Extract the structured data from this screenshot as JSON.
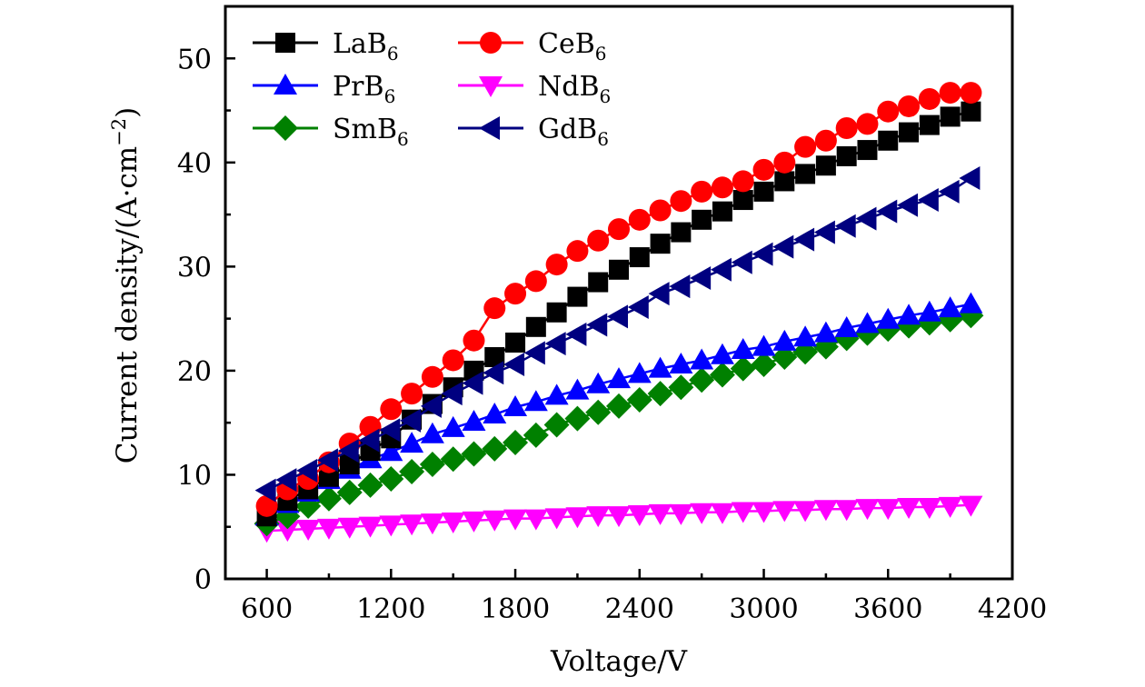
{
  "chart_data": {
    "type": "line",
    "title": "",
    "xlabel": "Voltage/V",
    "ylabel": "Current density/(A·cm⁻²)",
    "ylabel_parts": {
      "main": "Current density/(A·cm",
      "sup": "−2",
      "close": ")"
    },
    "xlim": [
      400,
      4200
    ],
    "ylim": [
      0,
      55
    ],
    "xticks": [
      600,
      1200,
      1800,
      2400,
      3000,
      3600,
      4200
    ],
    "xticks_minor": [
      900,
      1500,
      2100,
      2700,
      3300,
      3900
    ],
    "yticks": [
      0,
      10,
      20,
      30,
      40,
      50
    ],
    "yticks_minor": [
      5,
      15,
      25,
      35,
      45
    ],
    "grid": false,
    "legend": {
      "position": "top-left",
      "columns": 2
    },
    "x": [
      600,
      700,
      800,
      900,
      1000,
      1100,
      1200,
      1300,
      1400,
      1500,
      1600,
      1700,
      1800,
      1900,
      2000,
      2100,
      2200,
      2300,
      2400,
      2500,
      2600,
      2700,
      2800,
      2900,
      3000,
      3100,
      3200,
      3300,
      3400,
      3500,
      3600,
      3700,
      3800,
      3900,
      4000
    ],
    "series": [
      {
        "name": "LaB6",
        "base": "LaB",
        "sub": "6",
        "color": "#000000",
        "marker": "square",
        "values": [
          6.0,
          7.5,
          8.6,
          9.8,
          11.0,
          12.3,
          13.5,
          15.3,
          16.8,
          18.4,
          20.0,
          21.3,
          22.7,
          24.2,
          25.6,
          27.1,
          28.5,
          29.7,
          30.9,
          32.2,
          33.3,
          34.5,
          35.3,
          36.4,
          37.2,
          38.2,
          38.9,
          39.7,
          40.6,
          41.2,
          42.1,
          42.9,
          43.6,
          44.4,
          44.9
        ]
      },
      {
        "name": "CeB6",
        "base": "CeB",
        "sub": "6",
        "color": "#ff0000",
        "marker": "circle",
        "values": [
          7.0,
          8.6,
          9.6,
          11.2,
          13.0,
          14.6,
          16.3,
          17.8,
          19.4,
          21.0,
          22.9,
          26.0,
          27.4,
          28.6,
          30.2,
          31.5,
          32.5,
          33.6,
          34.5,
          35.4,
          36.3,
          37.2,
          37.6,
          38.2,
          39.3,
          40.0,
          41.5,
          42.1,
          43.3,
          43.7,
          44.9,
          45.4,
          46.1,
          46.7,
          46.7
        ]
      },
      {
        "name": "PrB6",
        "base": "PrB",
        "sub": "6",
        "color": "#0000ff",
        "marker": "triangle-up",
        "values": [
          6.0,
          7.2,
          8.3,
          9.5,
          10.5,
          11.5,
          12.2,
          13.0,
          13.9,
          14.5,
          15.1,
          15.8,
          16.5,
          17.0,
          17.6,
          18.1,
          18.7,
          19.2,
          19.7,
          20.2,
          20.6,
          21.0,
          21.5,
          22.0,
          22.3,
          22.8,
          23.2,
          23.6,
          24.1,
          24.5,
          24.9,
          25.3,
          25.6,
          26.0,
          26.4
        ]
      },
      {
        "name": "NdB6",
        "base": "NdB",
        "sub": "6",
        "color": "#ff00ff",
        "marker": "triangle-down",
        "values": [
          4.6,
          4.7,
          4.8,
          4.9,
          5.0,
          5.1,
          5.2,
          5.3,
          5.4,
          5.5,
          5.6,
          5.7,
          5.8,
          5.8,
          5.9,
          6.0,
          6.1,
          6.1,
          6.2,
          6.3,
          6.3,
          6.4,
          6.4,
          6.5,
          6.5,
          6.6,
          6.6,
          6.7,
          6.7,
          6.8,
          6.8,
          6.9,
          6.9,
          7.0,
          7.1
        ]
      },
      {
        "name": "SmB6",
        "base": "SmB",
        "sub": "6",
        "color": "#008000",
        "marker": "diamond",
        "values": [
          5.3,
          6.0,
          7.0,
          7.7,
          8.3,
          9.0,
          9.6,
          10.3,
          11.0,
          11.5,
          12.0,
          12.5,
          13.1,
          13.8,
          14.8,
          15.4,
          16.0,
          16.6,
          17.2,
          17.8,
          18.4,
          19.1,
          19.6,
          20.2,
          20.6,
          21.3,
          21.8,
          22.3,
          23.1,
          23.6,
          24.0,
          24.3,
          24.6,
          24.9,
          25.3
        ]
      },
      {
        "name": "GdB6",
        "base": "GdB",
        "sub": "6",
        "color": "#000080",
        "marker": "triangle-left",
        "values": [
          8.5,
          9.5,
          10.4,
          11.4,
          12.3,
          13.3,
          14.3,
          15.2,
          16.6,
          17.8,
          18.8,
          19.8,
          20.6,
          21.7,
          22.6,
          23.5,
          24.4,
          25.2,
          26.1,
          27.4,
          28.1,
          28.9,
          29.7,
          30.4,
          31.2,
          31.9,
          32.6,
          33.3,
          33.9,
          34.6,
          35.3,
          35.9,
          36.4,
          37.2,
          38.5
        ]
      }
    ]
  }
}
